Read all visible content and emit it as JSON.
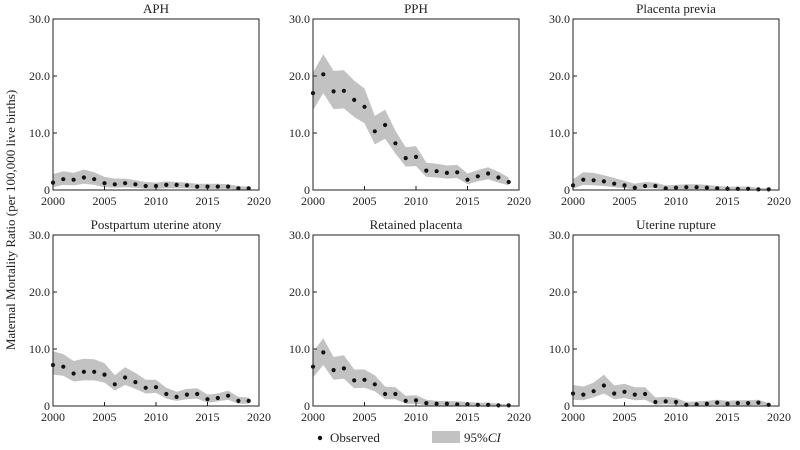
{
  "chart_data": {
    "type": "scatter",
    "ylabel": "Maternal Mortality Ratio (per 100,000 live births)",
    "xlim": [
      2000,
      2020
    ],
    "ylim": [
      0,
      30
    ],
    "xticks": [
      2000,
      2005,
      2010,
      2015,
      2020
    ],
    "yticks": [
      0,
      10,
      20,
      30
    ],
    "ytick_labels": [
      "0",
      "10.0",
      "20.0",
      "30.0"
    ],
    "legend": {
      "position": "bottom-center",
      "observed_label": "Observed",
      "ci_label_prefix": "95%",
      "ci_label_italic": "CI"
    },
    "colors": {
      "band": "#c2c2c2",
      "point": "#111111",
      "axis": "#222222"
    },
    "years": [
      2000,
      2001,
      2002,
      2003,
      2004,
      2005,
      2006,
      2007,
      2008,
      2009,
      2010,
      2011,
      2012,
      2013,
      2014,
      2015,
      2016,
      2017,
      2018,
      2019
    ],
    "panels": [
      {
        "title": "APH",
        "observed": [
          1.3,
          1.9,
          1.8,
          2.2,
          1.9,
          1.2,
          1.0,
          1.2,
          1.0,
          0.7,
          0.7,
          0.9,
          0.9,
          0.8,
          0.6,
          0.6,
          0.6,
          0.6,
          0.3,
          0.3
        ],
        "ci_upper": [
          2.8,
          3.3,
          3.0,
          3.6,
          3.1,
          2.3,
          2.0,
          2.0,
          1.7,
          1.4,
          1.3,
          1.5,
          1.4,
          1.3,
          1.1,
          1.1,
          1.1,
          1.0,
          0.7,
          0.6
        ],
        "ci_lower": [
          0.5,
          0.9,
          0.8,
          1.1,
          0.9,
          0.5,
          0.4,
          0.5,
          0.4,
          0.2,
          0.2,
          0.3,
          0.3,
          0.3,
          0.2,
          0.2,
          0.2,
          0.2,
          0.05,
          0.05
        ]
      },
      {
        "title": "PPH",
        "observed": [
          17.0,
          20.3,
          17.3,
          17.4,
          15.8,
          14.6,
          10.3,
          11.4,
          8.2,
          5.6,
          5.8,
          3.4,
          3.3,
          3.0,
          3.1,
          1.8,
          2.4,
          2.9,
          2.2,
          1.4
        ],
        "ci_upper": [
          20.6,
          23.8,
          20.9,
          21.0,
          19.2,
          17.8,
          13.0,
          14.1,
          10.4,
          7.5,
          7.7,
          4.8,
          4.6,
          4.3,
          4.4,
          2.9,
          3.5,
          4.0,
          3.2,
          2.2
        ],
        "ci_lower": [
          14.0,
          17.0,
          14.2,
          14.3,
          12.8,
          11.7,
          8.0,
          9.0,
          6.4,
          4.1,
          4.2,
          2.3,
          2.2,
          2.0,
          2.1,
          1.0,
          1.5,
          1.9,
          1.3,
          0.8
        ]
      },
      {
        "title": "Placenta previa",
        "observed": [
          0.8,
          1.8,
          1.7,
          1.5,
          1.1,
          0.8,
          0.4,
          0.7,
          0.7,
          0.3,
          0.4,
          0.5,
          0.5,
          0.4,
          0.3,
          0.2,
          0.2,
          0.2,
          0.1,
          0.1
        ],
        "ci_upper": [
          1.9,
          3.1,
          3.0,
          2.6,
          2.1,
          1.6,
          1.1,
          1.4,
          1.3,
          0.8,
          0.9,
          1.0,
          1.0,
          0.9,
          0.7,
          0.6,
          0.6,
          0.6,
          0.4,
          0.3
        ],
        "ci_lower": [
          0.2,
          0.9,
          0.8,
          0.7,
          0.5,
          0.3,
          0.1,
          0.3,
          0.3,
          0.05,
          0.1,
          0.1,
          0.1,
          0.1,
          0.05,
          0.0,
          0.0,
          0.0,
          0.0,
          0.0
        ]
      },
      {
        "title": "Postpartum uterine atony",
        "observed": [
          7.2,
          6.9,
          5.7,
          6.0,
          6.0,
          5.5,
          3.8,
          5.0,
          4.2,
          3.2,
          3.3,
          2.1,
          1.6,
          2.0,
          2.1,
          1.2,
          1.4,
          1.8,
          0.9,
          0.9
        ],
        "ci_upper": [
          9.6,
          9.1,
          7.9,
          8.3,
          8.2,
          7.5,
          5.4,
          6.8,
          5.8,
          4.6,
          4.6,
          3.2,
          2.5,
          3.0,
          3.1,
          2.0,
          2.2,
          2.7,
          1.6,
          1.5
        ],
        "ci_lower": [
          5.5,
          5.3,
          4.3,
          4.5,
          4.5,
          4.1,
          2.7,
          3.7,
          3.0,
          2.2,
          2.3,
          1.3,
          0.9,
          1.2,
          1.3,
          0.6,
          0.8,
          1.1,
          0.4,
          0.4
        ]
      },
      {
        "title": "Retained placenta",
        "observed": [
          6.9,
          9.4,
          6.3,
          6.6,
          4.5,
          4.6,
          3.8,
          2.1,
          2.1,
          0.9,
          1.0,
          0.5,
          0.4,
          0.4,
          0.3,
          0.3,
          0.2,
          0.2,
          0.1,
          0.1
        ],
        "ci_upper": [
          9.5,
          11.9,
          8.6,
          8.9,
          6.4,
          6.4,
          5.4,
          3.4,
          3.3,
          1.8,
          1.9,
          1.1,
          0.9,
          0.9,
          0.8,
          0.7,
          0.6,
          0.6,
          0.4,
          0.3
        ],
        "ci_lower": [
          5.0,
          7.2,
          4.6,
          4.8,
          3.1,
          3.2,
          2.6,
          1.2,
          1.2,
          0.4,
          0.4,
          0.1,
          0.1,
          0.1,
          0.05,
          0.05,
          0.0,
          0.0,
          0.0,
          0.0
        ]
      },
      {
        "title": "Uterine rupture",
        "observed": [
          2.2,
          2.0,
          2.6,
          3.6,
          2.2,
          2.5,
          2.0,
          2.1,
          0.7,
          0.8,
          0.7,
          0.2,
          0.3,
          0.4,
          0.6,
          0.4,
          0.5,
          0.5,
          0.6,
          0.2
        ],
        "ci_upper": [
          3.7,
          3.4,
          4.1,
          5.5,
          3.6,
          3.9,
          3.3,
          3.3,
          1.5,
          1.6,
          1.4,
          0.7,
          0.8,
          0.9,
          1.1,
          0.9,
          1.0,
          1.0,
          1.1,
          0.5
        ],
        "ci_lower": [
          1.1,
          1.0,
          1.5,
          2.2,
          1.2,
          1.4,
          1.0,
          1.1,
          0.2,
          0.3,
          0.2,
          0.0,
          0.05,
          0.1,
          0.2,
          0.1,
          0.1,
          0.1,
          0.2,
          0.0
        ]
      }
    ]
  }
}
